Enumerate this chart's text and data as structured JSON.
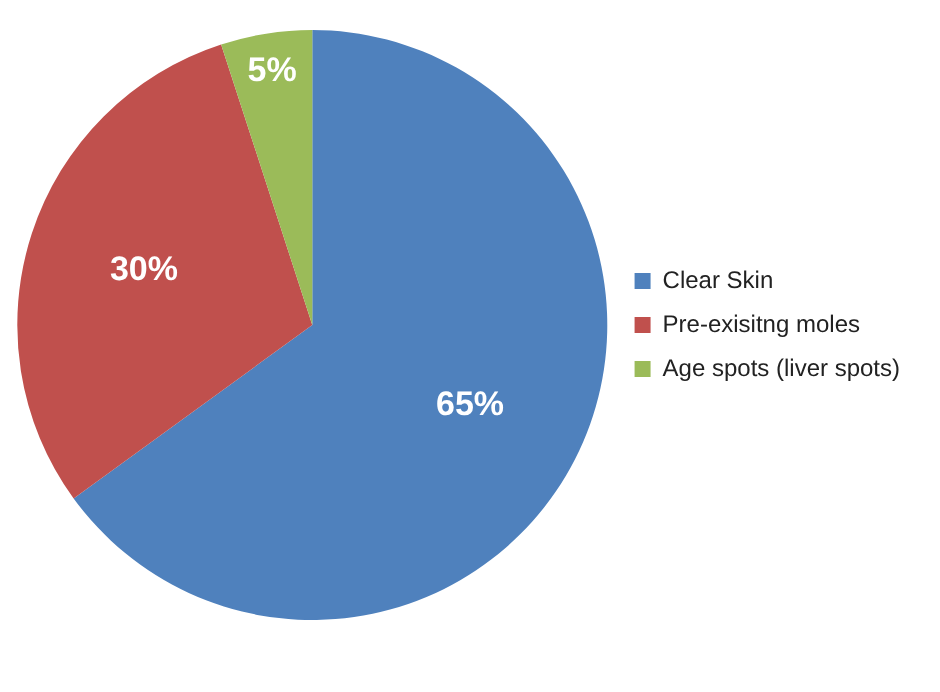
{
  "chart_data": {
    "type": "pie",
    "categories": [
      "Clear Skin",
      "Pre-exisitng moles",
      "Age spots (liver spots)"
    ],
    "values": [
      65,
      30,
      5
    ],
    "colors": [
      "#4f81bd",
      "#c0504d",
      "#9bbb59"
    ],
    "value_labels": [
      "65%",
      "30%",
      "5%"
    ],
    "legend": "right"
  }
}
